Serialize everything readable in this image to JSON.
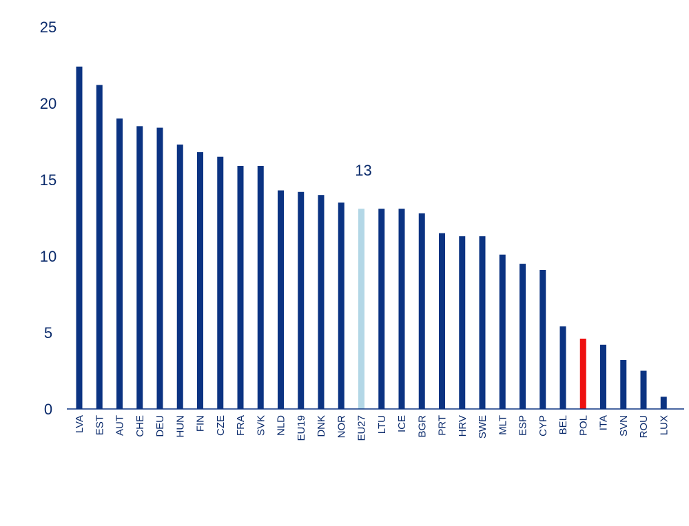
{
  "chart_data": {
    "type": "bar",
    "title": "",
    "xlabel": "",
    "ylabel": "",
    "ylim": [
      0,
      25
    ],
    "yticks": [
      0,
      5,
      10,
      15,
      20,
      25
    ],
    "grid": false,
    "legend": "none",
    "categories": [
      "LVA",
      "EST",
      "AUT",
      "CHE",
      "DEU",
      "HUN",
      "FIN",
      "CZE",
      "FRA",
      "SVK",
      "NLD",
      "EU19",
      "DNK",
      "NOR",
      "EU27",
      "LTU",
      "ICE",
      "BGR",
      "PRT",
      "HRV",
      "SWE",
      "MLT",
      "ESP",
      "CYP",
      "BEL",
      "POL",
      "ITA",
      "SVN",
      "ROU",
      "LUX"
    ],
    "values": [
      22.4,
      21.2,
      19.0,
      18.5,
      18.4,
      17.3,
      16.8,
      16.5,
      15.9,
      15.9,
      14.3,
      14.2,
      14.0,
      13.5,
      13.1,
      13.1,
      13.1,
      12.8,
      11.5,
      11.3,
      11.3,
      10.1,
      9.5,
      9.1,
      5.4,
      4.6,
      4.2,
      3.2,
      2.5,
      0.8
    ],
    "colors": {
      "default": "#0b3382",
      "highlights": {
        "EU27": "#b3d7e6",
        "POL": "#ee1111"
      },
      "text": "#0a2a6b"
    },
    "annotations": [
      {
        "category": "EU27",
        "text": "13"
      }
    ]
  }
}
